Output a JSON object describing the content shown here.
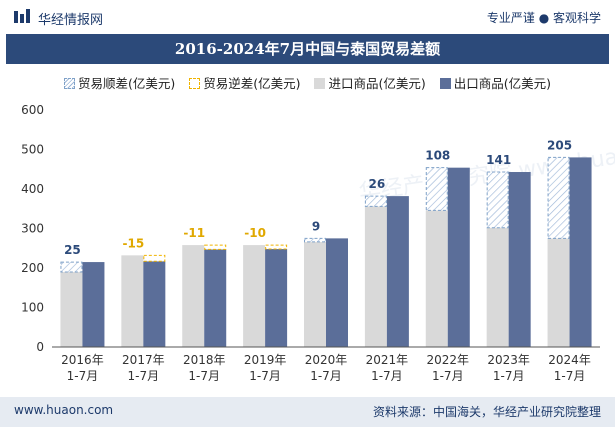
{
  "header": {
    "brand": "华经情报网",
    "tagline": "专业严谨 ● 客观科学"
  },
  "footer": {
    "url": "www.huaon.com",
    "source": "资料来源：中国海关，华经产业研究院整理"
  },
  "watermark": "华经产业研究院 www.huaon.com",
  "chart_data": {
    "type": "bar",
    "title": "2016-2024年7月中国与泰国贸易差额",
    "categories": [
      "2016年\n1-7月",
      "2017年\n1-7月",
      "2018年\n1-7月",
      "2019年\n1-7月",
      "2020年\n1-7月",
      "2021年\n1-7月",
      "2022年\n1-7月",
      "2023年\n1-7月",
      "2024年\n1-7月"
    ],
    "legend": [
      "贸易顺差(亿美元)",
      "贸易逆差(亿美元)",
      "进口商品(亿美元)",
      "出口商品(亿美元)"
    ],
    "series": [
      {
        "name": "进口商品(亿美元)",
        "values": [
          190,
          232,
          258,
          258,
          266,
          356,
          346,
          302,
          275
        ]
      },
      {
        "name": "出口商品(亿美元)",
        "values": [
          215,
          217,
          247,
          248,
          275,
          382,
          454,
          443,
          480
        ]
      }
    ],
    "balance": [
      25,
      -15,
      -11,
      -10,
      9,
      26,
      108,
      141,
      205
    ],
    "balance_labels": [
      "25",
      "-15",
      "-11",
      "-10",
      "9",
      "26",
      "108",
      "141",
      "205"
    ],
    "yticks": [
      "0",
      "100",
      "200",
      "300",
      "400",
      "500",
      "600"
    ],
    "ylim": [
      0,
      600
    ],
    "colors": {
      "import": "#d9d9d9",
      "export": "#5b6e99",
      "surplus_line": "#7fa1c8",
      "deficit_line": "#f0b400",
      "surplus_text": "#2c4a7a",
      "deficit_text": "#e0a800"
    }
  }
}
